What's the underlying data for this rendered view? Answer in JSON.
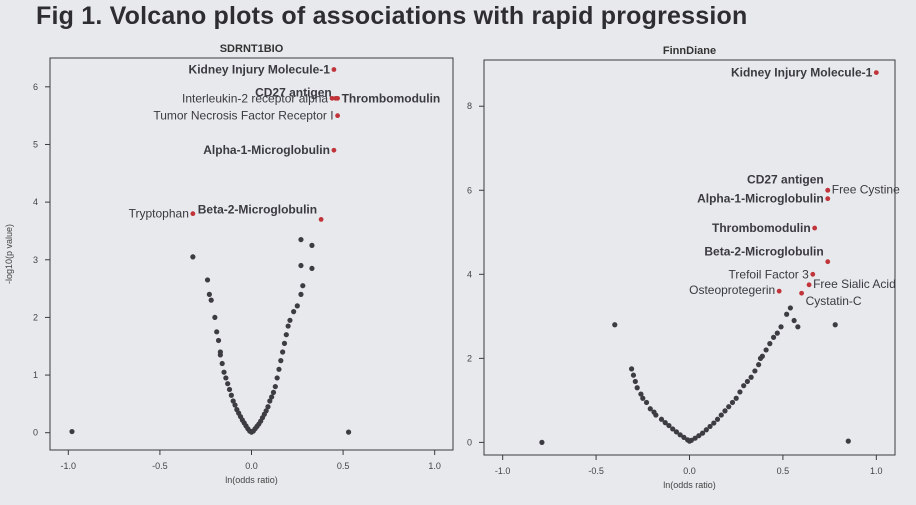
{
  "page": {
    "title": "Fig 1. Volcano plots of associations with rapid progression"
  },
  "colors": {
    "point": "#3c3c42",
    "highlight": "#c0343a",
    "frame": "#3a3a3e",
    "background": "#e7e9ec"
  },
  "chart_data": [
    {
      "type": "scatter",
      "title": "SDRNT1BIO",
      "xlabel": "ln(odds ratio)",
      "ylabel": "-log10(p value)",
      "xlim": [
        -1.1,
        1.1
      ],
      "ylim": [
        -0.3,
        6.5
      ],
      "xticks": [
        -1.0,
        -0.5,
        0.0,
        0.5,
        1.0
      ],
      "xtick_labels": [
        "-1.0",
        "-0.5",
        "0.0",
        "0.5",
        "1.0"
      ],
      "yticks": [
        0,
        1,
        2,
        3,
        4,
        5,
        6
      ],
      "ytick_labels": [
        "0",
        "1",
        "2",
        "3",
        "4",
        "5",
        "6"
      ],
      "labeled_points": [
        {
          "label": "Kidney Injury Molecule-1",
          "x": 0.45,
          "y": 6.3,
          "bold": true,
          "side": "left",
          "dy": 4
        },
        {
          "label": "CD27 antigen",
          "x": 0.46,
          "y": 5.8,
          "bold": true,
          "side": "left",
          "dy": -2
        },
        {
          "label": "Interleukin-2 receptor alpha",
          "x": 0.44,
          "y": 5.8,
          "bold": false,
          "side": "left",
          "dy": 4
        },
        {
          "label": "Thrombomodulin",
          "x": 0.47,
          "y": 5.8,
          "bold": true,
          "side": "right",
          "dy": 4
        },
        {
          "label": "Tumor Necrosis Factor Receptor I",
          "x": 0.47,
          "y": 5.5,
          "bold": false,
          "side": "left",
          "dy": 4
        },
        {
          "label": "Alpha-1-Microglobulin",
          "x": 0.45,
          "y": 4.9,
          "bold": true,
          "side": "left",
          "dy": 4
        },
        {
          "label": "Tryptophan",
          "x": -0.32,
          "y": 3.8,
          "bold": false,
          "side": "left",
          "dy": 4
        },
        {
          "label": "Beta-2-Microglobulin",
          "x": 0.38,
          "y": 3.7,
          "bold": true,
          "side": "left",
          "dy": -6
        }
      ],
      "points": [
        [
          -0.98,
          0.02
        ],
        [
          -0.32,
          3.05
        ],
        [
          -0.24,
          2.65
        ],
        [
          -0.23,
          2.4
        ],
        [
          -0.22,
          2.3
        ],
        [
          -0.2,
          2.0
        ],
        [
          -0.19,
          1.75
        ],
        [
          -0.18,
          1.6
        ],
        [
          -0.17,
          1.4
        ],
        [
          -0.17,
          1.35
        ],
        [
          -0.16,
          1.2
        ],
        [
          -0.15,
          1.05
        ],
        [
          -0.14,
          0.95
        ],
        [
          -0.13,
          0.85
        ],
        [
          -0.12,
          0.75
        ],
        [
          -0.11,
          0.65
        ],
        [
          -0.1,
          0.55
        ],
        [
          -0.09,
          0.48
        ],
        [
          -0.08,
          0.4
        ],
        [
          -0.07,
          0.34
        ],
        [
          -0.06,
          0.28
        ],
        [
          -0.05,
          0.22
        ],
        [
          -0.04,
          0.17
        ],
        [
          -0.03,
          0.12
        ],
        [
          -0.02,
          0.07
        ],
        [
          -0.01,
          0.03
        ],
        [
          0.0,
          0.01
        ],
        [
          0.01,
          0.03
        ],
        [
          0.02,
          0.07
        ],
        [
          0.03,
          0.11
        ],
        [
          0.04,
          0.15
        ],
        [
          0.05,
          0.2
        ],
        [
          0.06,
          0.26
        ],
        [
          0.07,
          0.32
        ],
        [
          0.08,
          0.38
        ],
        [
          0.09,
          0.45
        ],
        [
          0.1,
          0.55
        ],
        [
          0.11,
          0.62
        ],
        [
          0.12,
          0.7
        ],
        [
          0.13,
          0.8
        ],
        [
          0.14,
          0.95
        ],
        [
          0.15,
          1.1
        ],
        [
          0.16,
          1.25
        ],
        [
          0.17,
          1.4
        ],
        [
          0.18,
          1.55
        ],
        [
          0.19,
          1.7
        ],
        [
          0.2,
          1.85
        ],
        [
          0.21,
          1.95
        ],
        [
          0.23,
          2.1
        ],
        [
          0.25,
          2.2
        ],
        [
          0.27,
          2.4
        ],
        [
          0.28,
          2.55
        ],
        [
          0.27,
          2.9
        ],
        [
          0.33,
          2.85
        ],
        [
          0.33,
          3.25
        ],
        [
          0.27,
          3.35
        ],
        [
          0.53,
          0.01
        ]
      ]
    },
    {
      "type": "scatter",
      "title": "FinnDiane",
      "xlabel": "ln(odds ratio)",
      "ylabel": "",
      "xlim": [
        -1.1,
        1.1
      ],
      "ylim": [
        -0.3,
        9.1
      ],
      "xticks": [
        -1.0,
        -0.5,
        0.0,
        0.5,
        1.0
      ],
      "xtick_labels": [
        "-1.0",
        "-0.5",
        "0.0",
        "0.5",
        "1.0"
      ],
      "yticks": [
        0,
        2,
        4,
        6,
        8
      ],
      "ytick_labels": [
        "0",
        "2",
        "4",
        "6",
        "8"
      ],
      "labeled_points": [
        {
          "label": "Kidney Injury Molecule-1",
          "x": 1.0,
          "y": 8.8,
          "bold": true,
          "side": "left",
          "dy": 4
        },
        {
          "label": "CD27 antigen",
          "x": 0.74,
          "y": 6.0,
          "bold": true,
          "side": "left",
          "dy": -7
        },
        {
          "label": "Free Cystine",
          "x": 0.74,
          "y": 6.0,
          "bold": false,
          "side": "right",
          "dy": 3
        },
        {
          "label": "Alpha-1-Microglobulin",
          "x": 0.74,
          "y": 5.8,
          "bold": true,
          "side": "left",
          "dy": 4
        },
        {
          "label": "Thrombomodulin",
          "x": 0.67,
          "y": 5.1,
          "bold": true,
          "side": "left",
          "dy": 4
        },
        {
          "label": "Beta-2-Microglobulin",
          "x": 0.74,
          "y": 4.3,
          "bold": true,
          "side": "left",
          "dy": -6
        },
        {
          "label": "Trefoil Factor 3",
          "x": 0.66,
          "y": 4.0,
          "bold": false,
          "side": "left",
          "dy": 4
        },
        {
          "label": "Free Sialic Acid",
          "x": 0.64,
          "y": 3.75,
          "bold": false,
          "side": "right",
          "dy": 3
        },
        {
          "label": "Osteoprotegerin",
          "x": 0.48,
          "y": 3.6,
          "bold": false,
          "side": "left",
          "dy": 3
        },
        {
          "label": "Cystatin-C",
          "x": 0.6,
          "y": 3.55,
          "bold": false,
          "side": "right",
          "dy": 12
        }
      ],
      "points": [
        [
          -0.4,
          2.8
        ],
        [
          -0.31,
          1.75
        ],
        [
          -0.3,
          1.6
        ],
        [
          -0.29,
          1.45
        ],
        [
          -0.28,
          1.3
        ],
        [
          -0.26,
          1.15
        ],
        [
          -0.25,
          1.05
        ],
        [
          -0.23,
          0.95
        ],
        [
          -0.21,
          0.8
        ],
        [
          -0.19,
          0.72
        ],
        [
          -0.18,
          0.65
        ],
        [
          -0.15,
          0.55
        ],
        [
          -0.13,
          0.47
        ],
        [
          -0.11,
          0.4
        ],
        [
          -0.09,
          0.32
        ],
        [
          -0.07,
          0.25
        ],
        [
          -0.05,
          0.18
        ],
        [
          -0.03,
          0.12
        ],
        [
          -0.01,
          0.06
        ],
        [
          0.0,
          0.03
        ],
        [
          0.01,
          0.05
        ],
        [
          0.03,
          0.1
        ],
        [
          0.05,
          0.16
        ],
        [
          0.07,
          0.22
        ],
        [
          0.09,
          0.3
        ],
        [
          0.11,
          0.38
        ],
        [
          0.13,
          0.46
        ],
        [
          0.15,
          0.55
        ],
        [
          0.17,
          0.65
        ],
        [
          0.19,
          0.75
        ],
        [
          0.21,
          0.85
        ],
        [
          0.23,
          0.95
        ],
        [
          0.25,
          1.05
        ],
        [
          0.27,
          1.2
        ],
        [
          0.29,
          1.35
        ],
        [
          0.31,
          1.45
        ],
        [
          0.33,
          1.55
        ],
        [
          0.35,
          1.7
        ],
        [
          0.37,
          1.85
        ],
        [
          0.38,
          2.0
        ],
        [
          0.39,
          2.05
        ],
        [
          0.41,
          2.2
        ],
        [
          0.43,
          2.35
        ],
        [
          0.45,
          2.5
        ],
        [
          0.47,
          2.6
        ],
        [
          0.49,
          2.75
        ],
        [
          0.52,
          3.05
        ],
        [
          0.54,
          3.2
        ],
        [
          0.56,
          2.9
        ],
        [
          0.58,
          2.75
        ],
        [
          0.78,
          2.8
        ],
        [
          0.85,
          0.03
        ],
        [
          -0.79,
          0.0
        ]
      ]
    }
  ]
}
